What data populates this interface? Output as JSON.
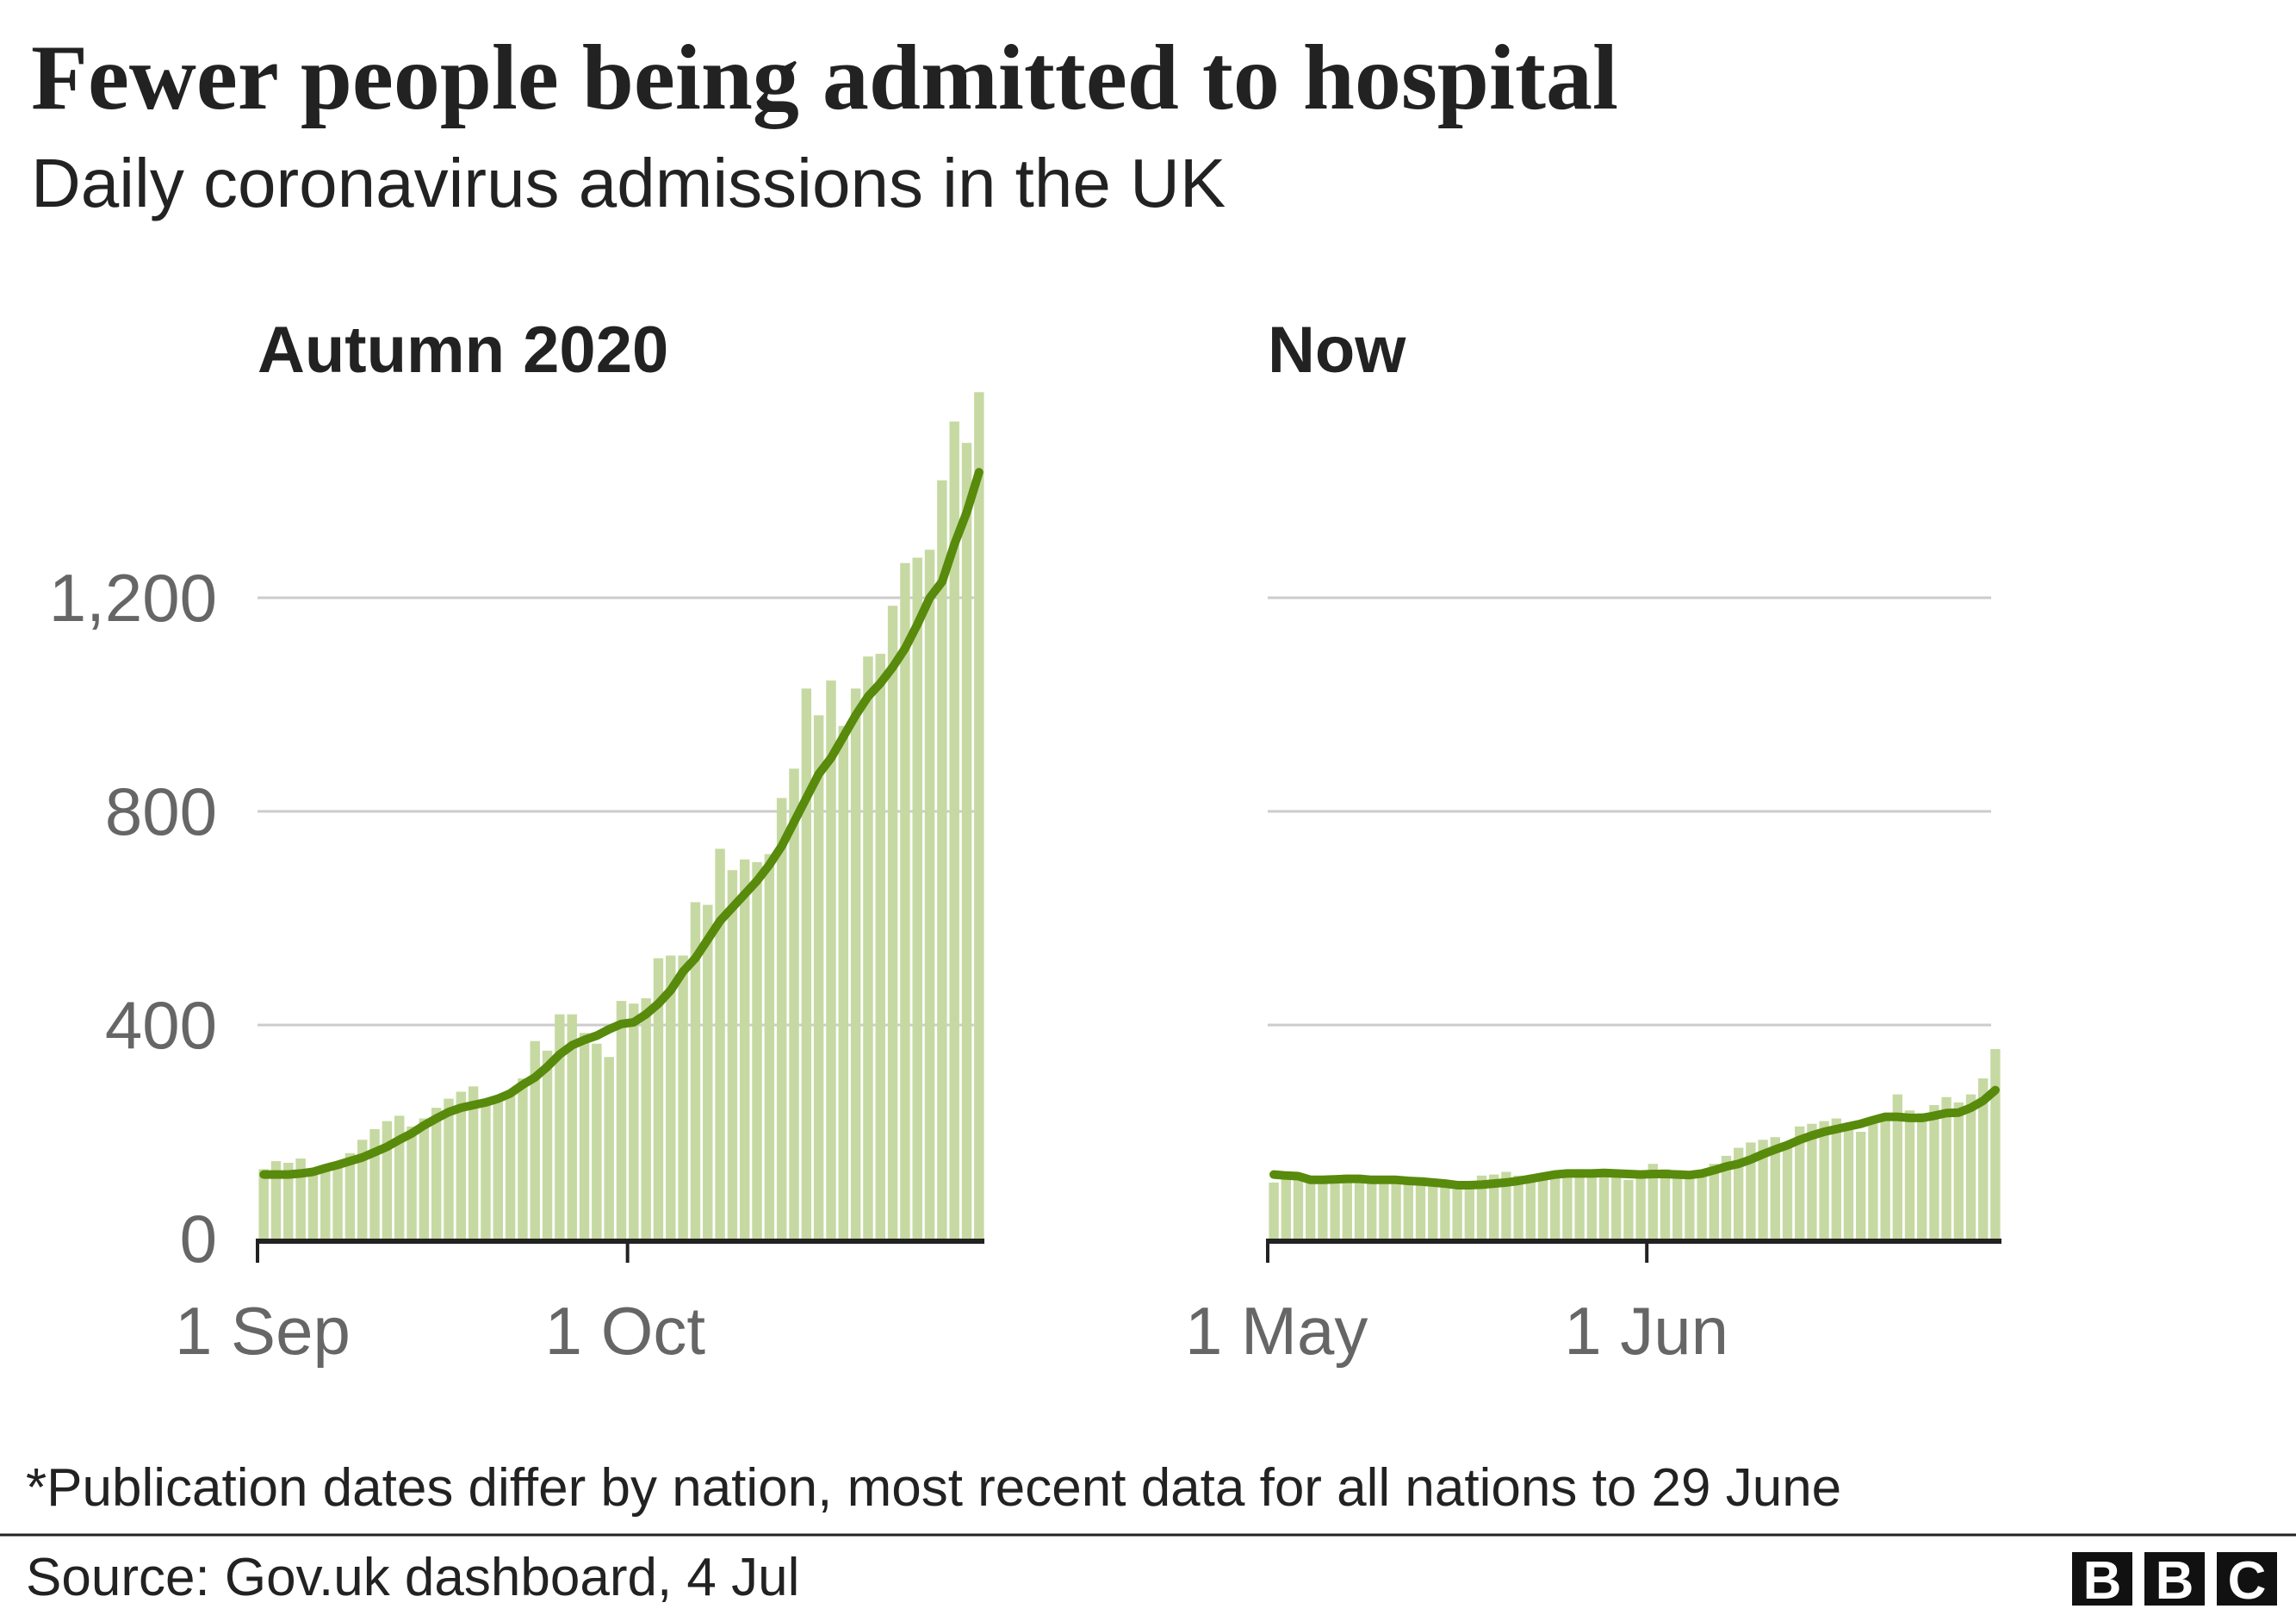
{
  "header": {
    "title": "Fewer people being admitted to hospital",
    "subtitle": "Daily coronavirus admissions in the UK"
  },
  "chart_data": [
    {
      "type": "bar",
      "title": "Autumn 2020",
      "categories": [
        "1 Sep",
        null,
        null,
        null,
        null,
        null,
        null,
        null,
        null,
        null,
        null,
        null,
        null,
        null,
        null,
        null,
        null,
        null,
        null,
        null,
        null,
        null,
        null,
        null,
        null,
        null,
        null,
        null,
        null,
        null,
        "1 Oct",
        null,
        null,
        null,
        null,
        null,
        null,
        null,
        null,
        null,
        null,
        null,
        null,
        null,
        null,
        null,
        null,
        null,
        null,
        null,
        null,
        null,
        null,
        null,
        null,
        null,
        null,
        null,
        null
      ],
      "series": [
        {
          "type": "bar",
          "color": "#c6d9a2",
          "values": [
            130,
            145,
            142,
            150,
            125,
            128,
            135,
            160,
            185,
            205,
            220,
            230,
            210,
            225,
            245,
            262,
            275,
            285,
            255,
            262,
            275,
            300,
            370,
            352,
            420,
            420,
            385,
            365,
            340,
            445,
            440,
            450,
            525,
            530,
            530,
            630,
            625,
            730,
            690,
            710,
            705,
            720,
            825,
            880,
            1030,
            980,
            1045,
            960,
            1030,
            1090,
            1095,
            1185,
            1265,
            1275,
            1290,
            1420,
            1530,
            1490,
            1585
          ]
        },
        {
          "type": "line",
          "color": "#588a0c",
          "values": [
            120,
            120,
            120,
            122,
            125,
            132,
            138,
            145,
            152,
            162,
            172,
            185,
            197,
            212,
            225,
            237,
            245,
            250,
            255,
            262,
            272,
            288,
            302,
            322,
            345,
            362,
            372,
            380,
            392,
            402,
            405,
            420,
            440,
            465,
            500,
            525,
            560,
            595,
            620,
            645,
            670,
            700,
            735,
            780,
            825,
            870,
            900,
            940,
            980,
            1015,
            1040,
            1070,
            1105,
            1150,
            1200,
            1230,
            1300,
            1360,
            1435
          ]
        }
      ],
      "ylim": [
        0,
        1600
      ],
      "yticks": [
        0,
        400,
        800,
        {
          "value": 1200,
          "label": "1,200"
        }
      ],
      "grid": true
    },
    {
      "type": "bar",
      "title": "Now",
      "categories": [
        "1 May",
        null,
        null,
        null,
        null,
        null,
        null,
        null,
        null,
        null,
        null,
        null,
        null,
        null,
        null,
        null,
        null,
        null,
        null,
        null,
        null,
        null,
        null,
        null,
        null,
        null,
        null,
        null,
        null,
        null,
        null,
        "1 Jun",
        null,
        null,
        null,
        null,
        null,
        null,
        null,
        null,
        null,
        null,
        null,
        null,
        null,
        null,
        null,
        null,
        null,
        null,
        null,
        null,
        null,
        null,
        null,
        null,
        null,
        null,
        null,
        null
      ],
      "series": [
        {
          "type": "bar",
          "color": "#c6d9a2",
          "values": [
            105,
            122,
            120,
            115,
            110,
            115,
            120,
            112,
            115,
            110,
            112,
            110,
            115,
            108,
            100,
            92,
            98,
            118,
            120,
            125,
            118,
            112,
            115,
            120,
            125,
            130,
            130,
            128,
            125,
            110,
            125,
            140,
            130,
            128,
            120,
            125,
            140,
            155,
            170,
            180,
            185,
            190,
            175,
            210,
            215,
            220,
            225,
            205,
            200,
            215,
            230,
            270,
            240,
            235,
            250,
            265,
            255,
            270,
            300,
            355
          ]
        },
        {
          "type": "line",
          "color": "#588a0c",
          "values": [
            120,
            118,
            117,
            110,
            110,
            111,
            112,
            112,
            110,
            110,
            110,
            108,
            107,
            105,
            103,
            100,
            100,
            101,
            103,
            105,
            108,
            112,
            116,
            120,
            122,
            122,
            122,
            123,
            122,
            121,
            120,
            121,
            121,
            120,
            119,
            122,
            128,
            135,
            140,
            148,
            158,
            167,
            175,
            185,
            193,
            200,
            205,
            210,
            215,
            222,
            228,
            228,
            226,
            226,
            230,
            235,
            236,
            245,
            258,
            278
          ]
        }
      ],
      "ylim": [
        0,
        1600
      ],
      "grid": true
    }
  ],
  "footer": {
    "note": "*Publication dates differ by nation, most recent data for all nations to 29 June",
    "source": "Source: Gov.uk dashboard, 4 Jul",
    "logo": [
      "B",
      "B",
      "C"
    ]
  }
}
